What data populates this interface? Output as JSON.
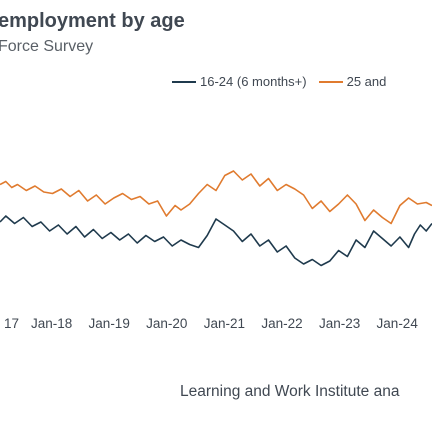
{
  "header": {
    "title": "employment by age",
    "subtitle": "Force Survey"
  },
  "legend": {
    "items": [
      "16-24 (6 months+)",
      "25 and"
    ]
  },
  "source": "Learning and Work Institute ana",
  "colors": {
    "series_youth": "#1f3a4d",
    "series_adult": "#e07b2f",
    "text": "#404852"
  },
  "chart_data": {
    "type": "line",
    "title": "employment by age",
    "subtitle": "Force Survey",
    "x_tick_labels": [
      "17",
      "Jan-18",
      "Jan-19",
      "Jan-20",
      "Jan-21",
      "Jan-22",
      "Jan-23",
      "Jan-24"
    ],
    "x_range": [
      2017.0,
      2024.4
    ],
    "y_range": [
      0,
      10
    ],
    "grid": false,
    "legend_position": "top-right",
    "series": [
      {
        "name": "16-24 (6 months+)",
        "color": "#1f3a4d",
        "x": [
          2017.0,
          2017.1,
          2017.25,
          2017.4,
          2017.55,
          2017.7,
          2017.85,
          2018.0,
          2018.15,
          2018.3,
          2018.45,
          2018.6,
          2018.75,
          2018.9,
          2019.05,
          2019.2,
          2019.35,
          2019.5,
          2019.65,
          2019.8,
          2019.95,
          2020.1,
          2020.25,
          2020.4,
          2020.55,
          2020.7,
          2020.85,
          2021.0,
          2021.15,
          2021.3,
          2021.45,
          2021.6,
          2021.75,
          2021.9,
          2022.05,
          2022.2,
          2022.35,
          2022.5,
          2022.65,
          2022.8,
          2022.95,
          2023.1,
          2023.25,
          2023.4,
          2023.55,
          2023.7,
          2023.85,
          2024.0,
          2024.1,
          2024.2,
          2024.3,
          2024.4
        ],
        "y": [
          5.2,
          5.6,
          5.1,
          5.5,
          4.9,
          5.2,
          4.6,
          5.0,
          4.4,
          4.9,
          4.2,
          4.7,
          4.1,
          4.5,
          4.0,
          4.4,
          3.8,
          4.3,
          3.9,
          4.2,
          3.6,
          4.0,
          3.7,
          3.5,
          4.3,
          5.4,
          5.0,
          4.6,
          3.9,
          4.4,
          3.6,
          4.0,
          3.2,
          3.6,
          2.8,
          2.4,
          2.7,
          2.3,
          2.6,
          3.3,
          2.9,
          4.0,
          3.5,
          4.6,
          4.1,
          3.6,
          4.2,
          3.5,
          4.4,
          5.0,
          4.6,
          5.1
        ]
      },
      {
        "name": "25 and",
        "color": "#e07b2f",
        "x": [
          2017.0,
          2017.1,
          2017.2,
          2017.3,
          2017.45,
          2017.6,
          2017.75,
          2017.9,
          2018.05,
          2018.2,
          2018.35,
          2018.5,
          2018.65,
          2018.8,
          2018.95,
          2019.1,
          2019.25,
          2019.4,
          2019.55,
          2019.7,
          2019.85,
          2020.0,
          2020.1,
          2020.25,
          2020.4,
          2020.55,
          2020.7,
          2020.85,
          2021.0,
          2021.15,
          2021.3,
          2021.45,
          2021.6,
          2021.75,
          2021.9,
          2022.05,
          2022.2,
          2022.35,
          2022.5,
          2022.65,
          2022.8,
          2022.95,
          2023.1,
          2023.25,
          2023.4,
          2023.55,
          2023.7,
          2023.85,
          2024.0,
          2024.15,
          2024.3,
          2024.4
        ],
        "y": [
          7.7,
          7.9,
          7.5,
          7.7,
          7.3,
          7.6,
          7.2,
          7.1,
          7.4,
          6.9,
          7.3,
          6.6,
          7.0,
          6.4,
          6.8,
          7.1,
          6.7,
          6.9,
          6.4,
          6.6,
          5.6,
          6.3,
          6.0,
          6.4,
          7.1,
          7.7,
          7.3,
          8.3,
          8.6,
          8.0,
          8.4,
          7.6,
          8.1,
          7.3,
          7.7,
          7.4,
          7.0,
          6.1,
          6.6,
          5.9,
          6.4,
          7.0,
          6.4,
          5.3,
          6.0,
          5.5,
          5.1,
          6.3,
          6.8,
          6.4,
          6.5,
          6.3
        ]
      }
    ]
  }
}
